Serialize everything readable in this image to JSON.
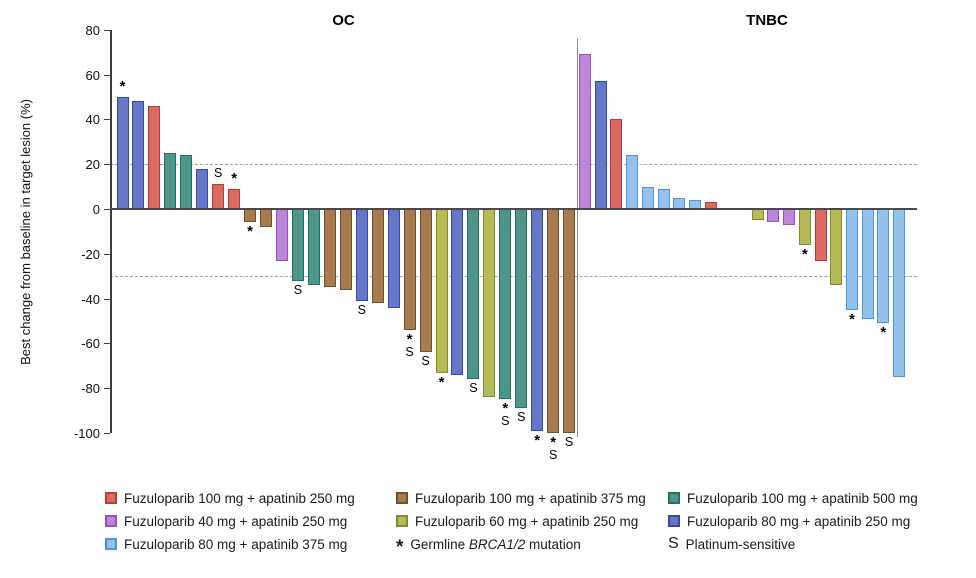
{
  "chart_data": {
    "type": "bar",
    "subtype": "waterfall",
    "ylabel": "Best change from baseline in target lesion (%)",
    "ylim": [
      -100,
      80
    ],
    "yticks": [
      80,
      60,
      40,
      20,
      0,
      -20,
      -40,
      -60,
      -80,
      -100
    ],
    "reference_lines": [
      20,
      -30
    ],
    "grid": "off",
    "panels": [
      {
        "name": "OC",
        "bars": [
          {
            "group": "blue",
            "value": 50,
            "flags": [
              "*"
            ]
          },
          {
            "group": "blue",
            "value": 48,
            "flags": []
          },
          {
            "group": "red",
            "value": 46,
            "flags": []
          },
          {
            "group": "teal",
            "value": 25,
            "flags": []
          },
          {
            "group": "teal",
            "value": 24,
            "flags": []
          },
          {
            "group": "blue",
            "value": 18,
            "flags": []
          },
          {
            "group": "red",
            "value": 11,
            "flags": [
              "S"
            ]
          },
          {
            "group": "red",
            "value": 9,
            "flags": [
              "*"
            ]
          },
          {
            "group": "brown",
            "value": -6,
            "flags": [
              "*"
            ]
          },
          {
            "group": "brown",
            "value": -8,
            "flags": []
          },
          {
            "group": "orchid",
            "value": -23,
            "flags": []
          },
          {
            "group": "teal",
            "value": -32,
            "flags": [
              "S"
            ]
          },
          {
            "group": "teal",
            "value": -34,
            "flags": []
          },
          {
            "group": "brown",
            "value": -35,
            "flags": []
          },
          {
            "group": "brown",
            "value": -36,
            "flags": []
          },
          {
            "group": "blue",
            "value": -41,
            "flags": [
              "S"
            ]
          },
          {
            "group": "brown",
            "value": -42,
            "flags": []
          },
          {
            "group": "blue",
            "value": -44,
            "flags": []
          },
          {
            "group": "brown",
            "value": -54,
            "flags": [
              "*",
              "S"
            ]
          },
          {
            "group": "brown",
            "value": -64,
            "flags": [
              "S"
            ]
          },
          {
            "group": "yellowgreen",
            "value": -73,
            "flags": [
              "*"
            ]
          },
          {
            "group": "blue",
            "value": -74,
            "flags": []
          },
          {
            "group": "teal",
            "value": -76,
            "flags": [
              "S"
            ]
          },
          {
            "group": "yellowgreen",
            "value": -84,
            "flags": []
          },
          {
            "group": "teal",
            "value": -85,
            "flags": [
              "*",
              "S"
            ]
          },
          {
            "group": "teal",
            "value": -89,
            "flags": [
              "S"
            ]
          },
          {
            "group": "blue",
            "value": -99,
            "flags": [
              "*"
            ]
          },
          {
            "group": "brown",
            "value": -100,
            "flags": [
              "*",
              "S"
            ]
          },
          {
            "group": "brown",
            "value": -100,
            "flags": [
              "S"
            ]
          }
        ]
      },
      {
        "name": "TNBC",
        "bars": [
          {
            "group": "orchid",
            "value": 69,
            "flags": []
          },
          {
            "group": "blue",
            "value": 57,
            "flags": []
          },
          {
            "group": "red",
            "value": 40,
            "flags": []
          },
          {
            "group": "lightblue",
            "value": 24,
            "flags": []
          },
          {
            "group": "lightblue",
            "value": 10,
            "flags": []
          },
          {
            "group": "lightblue",
            "value": 9,
            "flags": []
          },
          {
            "group": "lightblue",
            "value": 5,
            "flags": []
          },
          {
            "group": "lightblue",
            "value": 4,
            "flags": []
          },
          {
            "group": "red",
            "value": 3,
            "flags": []
          },
          {
            "group": "yellowgreen",
            "value": -5,
            "flags": [],
            "gap_before": 2
          },
          {
            "group": "orchid",
            "value": -6,
            "flags": []
          },
          {
            "group": "orchid",
            "value": -7,
            "flags": []
          },
          {
            "group": "yellowgreen",
            "value": -16,
            "flags": [
              "*"
            ]
          },
          {
            "group": "red",
            "value": -23,
            "flags": []
          },
          {
            "group": "yellowgreen",
            "value": -34,
            "flags": []
          },
          {
            "group": "lightblue",
            "value": -45,
            "flags": [
              "*"
            ]
          },
          {
            "group": "lightblue",
            "value": -49,
            "flags": []
          },
          {
            "group": "lightblue",
            "value": -51,
            "flags": [
              "*"
            ]
          },
          {
            "group": "lightblue",
            "value": -75,
            "flags": []
          }
        ]
      }
    ],
    "colors": {
      "red": {
        "fill": "#DB6A62",
        "stroke": "#B53D36"
      },
      "brown": {
        "fill": "#A67C4E",
        "stroke": "#70512A"
      },
      "teal": {
        "fill": "#4E968C",
        "stroke": "#1F7065"
      },
      "orchid": {
        "fill": "#BC85DA",
        "stroke": "#9850BE"
      },
      "yellowgreen": {
        "fill": "#B6BB56",
        "stroke": "#82892F"
      },
      "blue": {
        "fill": "#6577C6",
        "stroke": "#3647A8"
      },
      "lightblue": {
        "fill": "#95C2EC",
        "stroke": "#4E94DB"
      }
    },
    "legend": {
      "columns": [
        [
          {
            "swatch": "red",
            "label": "Fuzuloparib 100 mg + apatinib 250 mg"
          },
          {
            "swatch": "orchid",
            "label": "Fuzuloparib 40 mg + apatinib 250 mg"
          },
          {
            "swatch": "lightblue",
            "label": "Fuzuloparib 80 mg + apatinib 375 mg"
          }
        ],
        [
          {
            "swatch": "brown",
            "label": "Fuzuloparib 100 mg + apatinib 375 mg"
          },
          {
            "swatch": "yellowgreen",
            "label": "Fuzuloparib 60 mg + apatinib 250 mg"
          },
          {
            "symbol": "*",
            "label_prefix": "Germline ",
            "label_italic": "BRCA1/2",
            "label_suffix": " mutation"
          }
        ],
        [
          {
            "swatch": "teal",
            "label": "Fuzuloparib 100 mg + apatinib 500 mg"
          },
          {
            "swatch": "blue",
            "label": "Fuzuloparib 80 mg + apatinib 250 mg"
          },
          {
            "symbol": "S",
            "label": "Platinum-sensitive"
          }
        ]
      ]
    }
  }
}
